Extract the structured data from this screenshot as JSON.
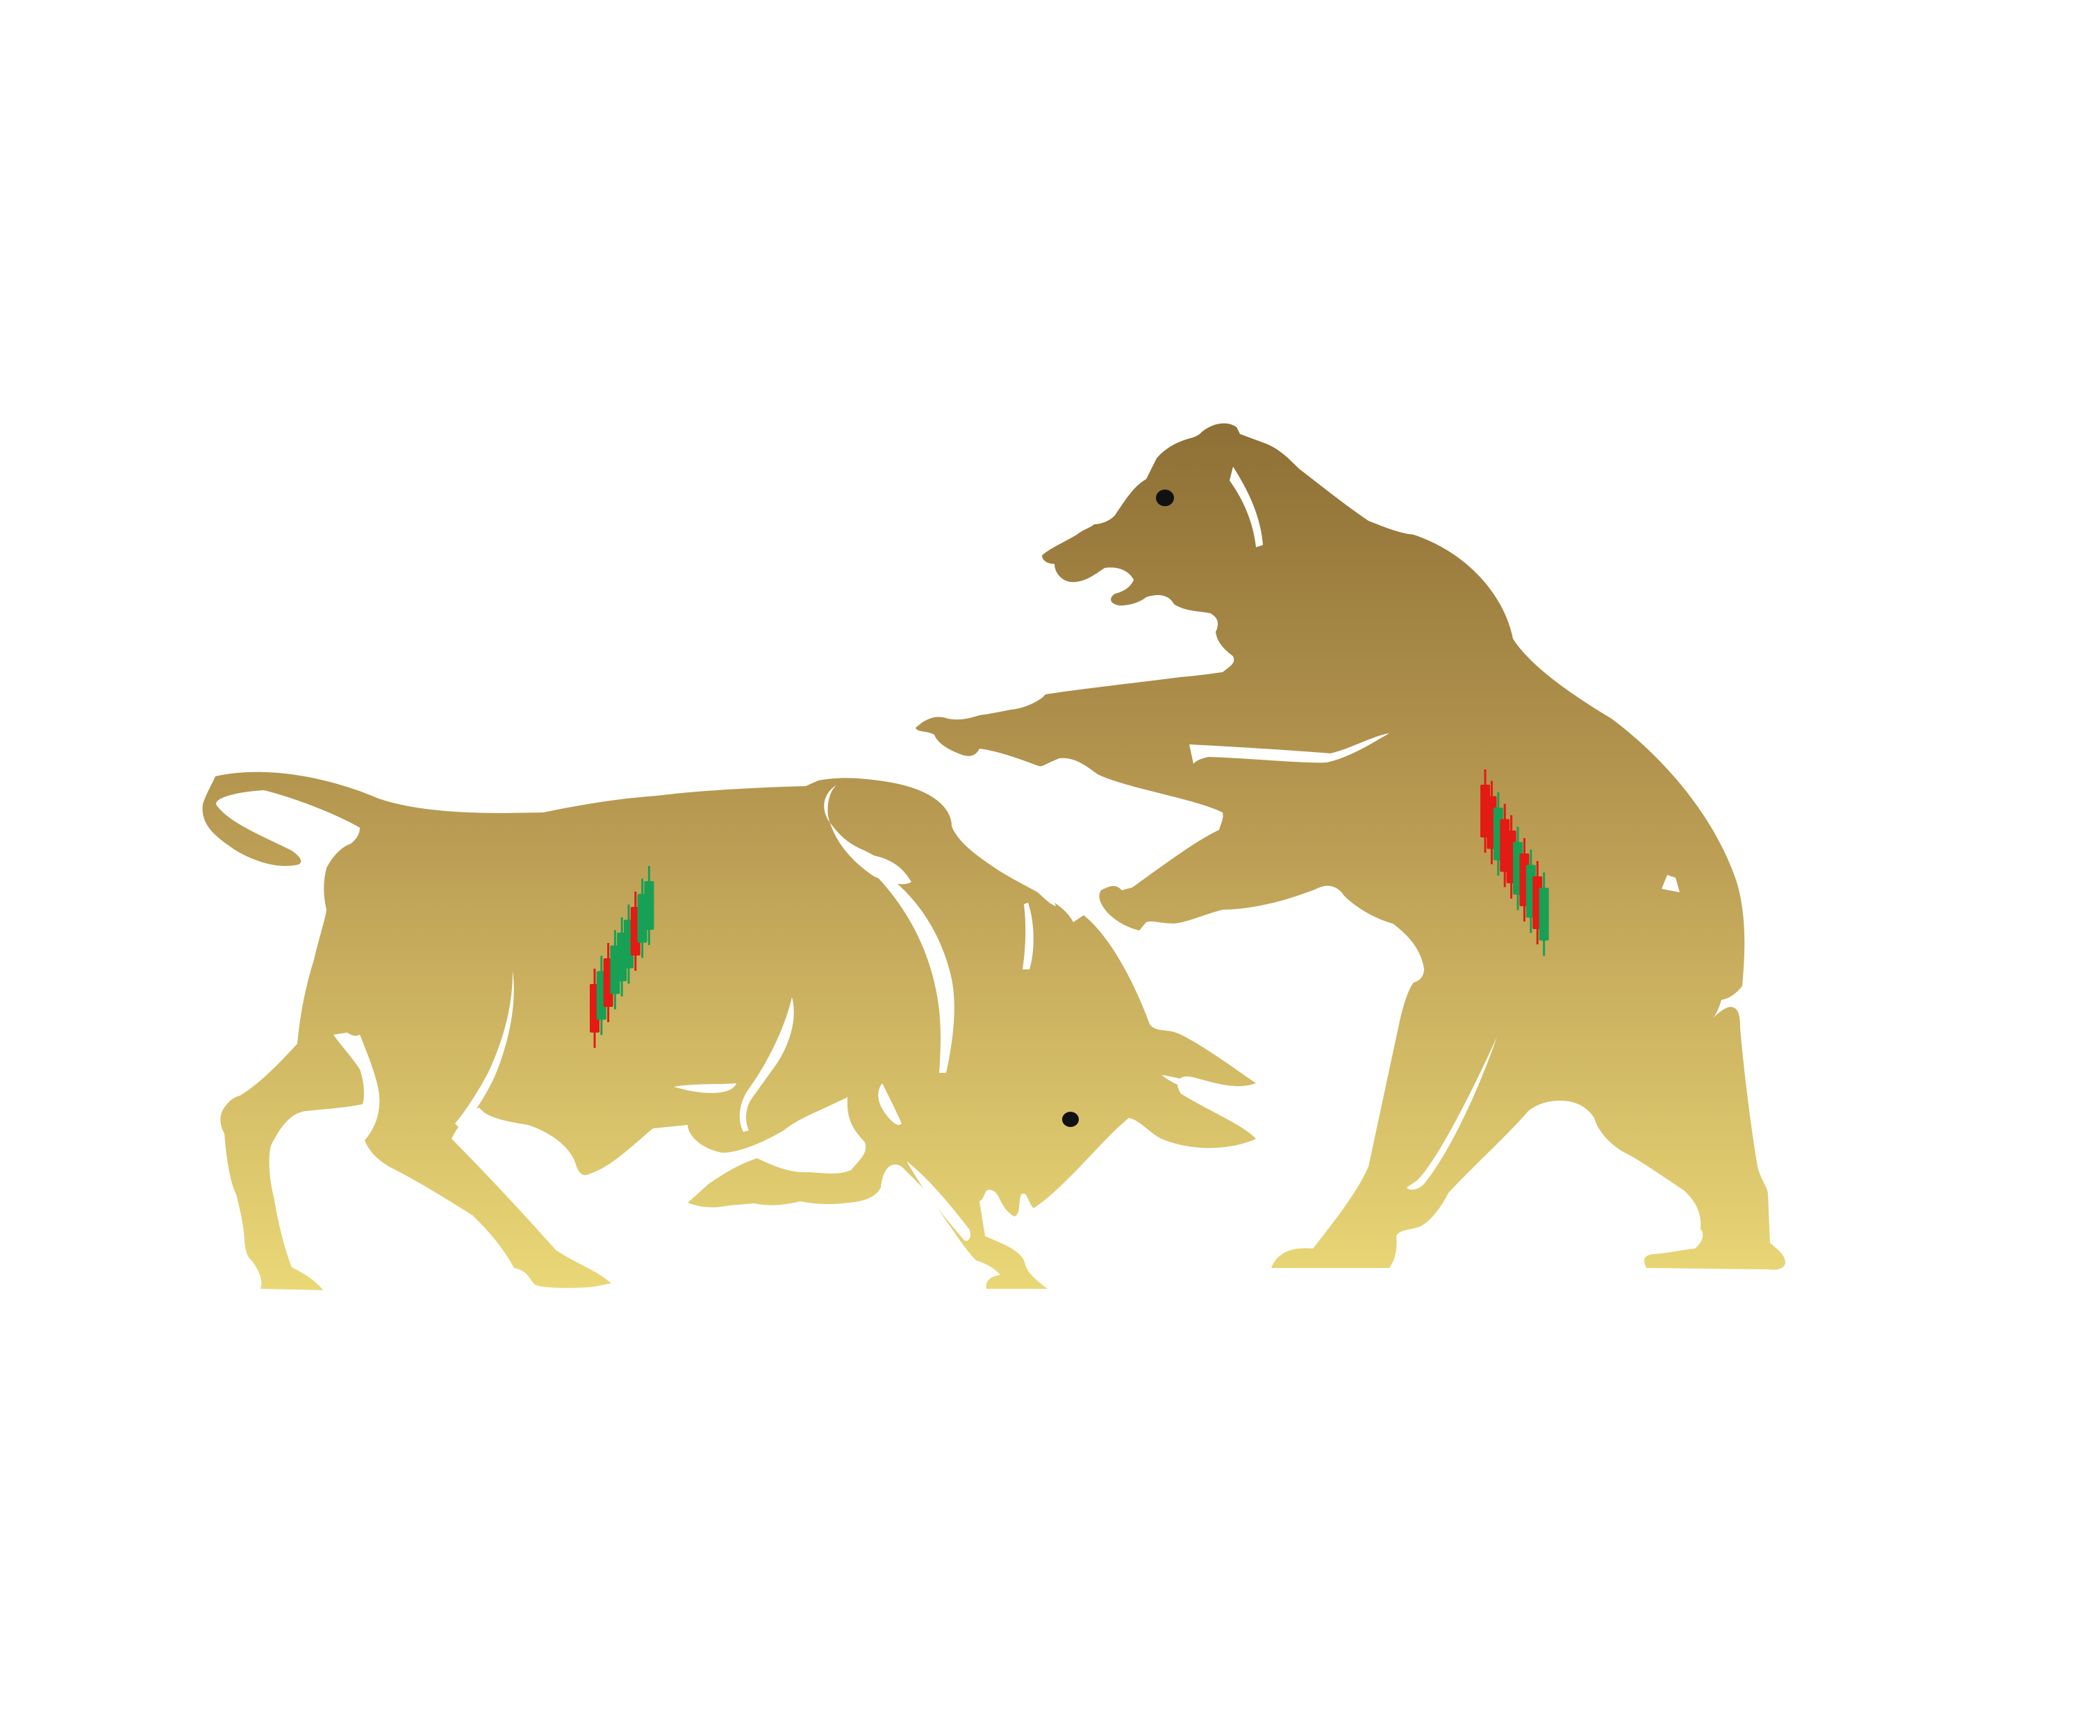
{
  "illustration": {
    "background_color": "#ffffff",
    "gradient_top_color": "#8f7036",
    "gradient_bottom_color": "#ead877",
    "eye_color": "#111111",
    "bull": {
      "icon": "bull-icon",
      "candles": {
        "trend": "up",
        "colors": [
          "#e31b14",
          "#18a055",
          "#e31b14",
          "#18a055",
          "#18a055",
          "#18a055",
          "#e31b14",
          "#18a055",
          "#18a055"
        ]
      }
    },
    "bear": {
      "icon": "bear-icon",
      "candles": {
        "trend": "down",
        "colors": [
          "#e31b14",
          "#e31b14",
          "#18a055",
          "#e31b14",
          "#e31b14",
          "#18a055",
          "#e31b14",
          "#18a055",
          "#e31b14",
          "#18a055"
        ]
      }
    }
  }
}
